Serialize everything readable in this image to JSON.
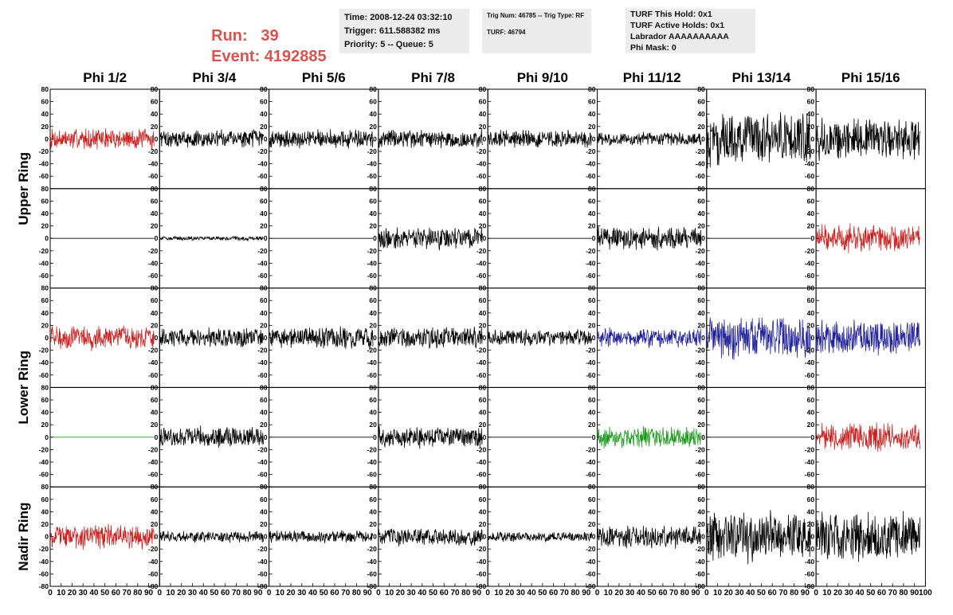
{
  "header": {
    "run_label": "Run:",
    "run_value": "39",
    "event_label": "Event:",
    "event_value": "4192885",
    "box1": [
      "Time: 2008-12-24 03:32:10",
      "Trigger: 611.588382 ms",
      "Priority: 5 -- Queue: 5"
    ],
    "box2": [
      "Trig Num: 46785 -- Trig Type: RF",
      "TURF: 46794"
    ],
    "box3": [
      "TURF This Hold: 0x1",
      "TURF Active Holds: 0x1",
      "Labrador AAAAAAAAAA",
      "Phi Mask: 0"
    ]
  },
  "colors": {
    "black": "#000000",
    "red": "#cc2222",
    "blue": "#22229c",
    "green": "#1a9a1a",
    "header_red": "#d9534f"
  },
  "chart_data": {
    "type": "line",
    "columns": [
      "Phi 1/2",
      "Phi 3/4",
      "Phi 5/6",
      "Phi 7/8",
      "Phi 9/10",
      "Phi 11/12",
      "Phi 13/14",
      "Phi 15/16"
    ],
    "ring_labels": [
      "Upper Ring",
      "Lower Ring",
      "Nadir Ring"
    ],
    "ylim": [
      -80,
      80
    ],
    "xlim": [
      0,
      100
    ],
    "y_ticks": [
      "80",
      "60",
      "40",
      "20",
      "0",
      "-20",
      "-40",
      "-60",
      "-80"
    ],
    "x_ticks": [
      "0",
      "10",
      "20",
      "30",
      "40",
      "50",
      "60",
      "70",
      "80",
      "90",
      "100"
    ],
    "panels": [
      [
        {
          "color": "red",
          "amp": 15,
          "flat": false
        },
        {
          "color": "black",
          "amp": 13,
          "flat": false
        },
        {
          "color": "black",
          "amp": 13,
          "flat": false
        },
        {
          "color": "black",
          "amp": 13,
          "flat": false
        },
        {
          "color": "black",
          "amp": 13,
          "flat": false
        },
        {
          "color": "black",
          "amp": 10,
          "flat": false
        },
        {
          "color": "black",
          "amp": 38,
          "flat": false
        },
        {
          "color": "black",
          "amp": 30,
          "flat": false
        }
      ],
      [
        {
          "color": "black",
          "amp": 0,
          "flat": true
        },
        {
          "color": "black",
          "amp": 3,
          "flat": false
        },
        {
          "color": "black",
          "amp": 0,
          "flat": true
        },
        {
          "color": "black",
          "amp": 16,
          "flat": false
        },
        {
          "color": "black",
          "amp": 0,
          "flat": true
        },
        {
          "color": "black",
          "amp": 16,
          "flat": false
        },
        {
          "color": "black",
          "amp": 0,
          "flat": true
        },
        {
          "color": "red",
          "amp": 20,
          "flat": false
        }
      ],
      [
        {
          "color": "red",
          "amp": 17,
          "flat": false
        },
        {
          "color": "black",
          "amp": 14,
          "flat": false
        },
        {
          "color": "black",
          "amp": 16,
          "flat": false
        },
        {
          "color": "black",
          "amp": 16,
          "flat": false
        },
        {
          "color": "black",
          "amp": 12,
          "flat": false
        },
        {
          "color": "blue",
          "amp": 14,
          "flat": false
        },
        {
          "color": "blue",
          "amp": 30,
          "flat": false
        },
        {
          "color": "blue",
          "amp": 25,
          "flat": false
        }
      ],
      [
        {
          "color": "green",
          "amp": 0,
          "flat": true
        },
        {
          "color": "black",
          "amp": 15,
          "flat": false
        },
        {
          "color": "black",
          "amp": 0,
          "flat": true
        },
        {
          "color": "black",
          "amp": 15,
          "flat": false
        },
        {
          "color": "black",
          "amp": 0,
          "flat": true
        },
        {
          "color": "green",
          "amp": 15,
          "flat": false
        },
        {
          "color": "black",
          "amp": 0,
          "flat": true
        },
        {
          "color": "red",
          "amp": 20,
          "flat": false
        }
      ],
      [
        {
          "color": "red",
          "amp": 17,
          "flat": false
        },
        {
          "color": "black",
          "amp": 8,
          "flat": false
        },
        {
          "color": "black",
          "amp": 9,
          "flat": false
        },
        {
          "color": "black",
          "amp": 13,
          "flat": false
        },
        {
          "color": "black",
          "amp": 7,
          "flat": false
        },
        {
          "color": "black",
          "amp": 16,
          "flat": false
        },
        {
          "color": "black",
          "amp": 36,
          "flat": false
        },
        {
          "color": "black",
          "amp": 34,
          "flat": false
        }
      ]
    ]
  }
}
